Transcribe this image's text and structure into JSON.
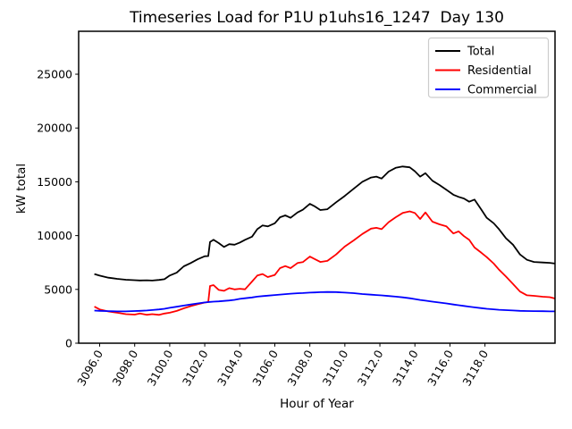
{
  "chart_data": {
    "type": "line",
    "title": "Timeseries Load for P1U p1uhs16_1247  Day 130",
    "xlabel": "Hour of Year",
    "ylabel": "kW total",
    "xlim": [
      3094.8,
      3122.0
    ],
    "ylim": [
      0,
      28990
    ],
    "grid": false,
    "legend_position": "upper right",
    "xticks": [
      3096,
      3098,
      3100,
      3102,
      3104,
      3106,
      3108,
      3110,
      3112,
      3114,
      3116,
      3118
    ],
    "xtick_labels": [
      "3096.0",
      "3098.0",
      "3100.0",
      "3102.0",
      "3104.0",
      "3106.0",
      "3108.0",
      "3110.0",
      "3112.0",
      "3114.0",
      "3116.0",
      "3118.0"
    ],
    "yticks": [
      0,
      5000,
      10000,
      15000,
      20000,
      25000
    ],
    "ytick_labels": [
      "0",
      "5000",
      "10000",
      "15000",
      "20000",
      "25000"
    ],
    "x": [
      3095.7,
      3096.0,
      3096.5,
      3097.0,
      3097.5,
      3098.0,
      3098.3,
      3098.7,
      3099.0,
      3099.4,
      3099.7,
      3100.0,
      3100.4,
      3100.8,
      3101.2,
      3101.6,
      3102.0,
      3102.2,
      3102.3,
      3102.5,
      3102.8,
      3103.1,
      3103.4,
      3103.7,
      3104.0,
      3104.3,
      3104.7,
      3105.0,
      3105.3,
      3105.6,
      3106.0,
      3106.3,
      3106.6,
      3106.9,
      3107.3,
      3107.6,
      3108.0,
      3108.3,
      3108.6,
      3109.0,
      3109.5,
      3110.0,
      3110.5,
      3111.0,
      3111.5,
      3111.8,
      3112.1,
      3112.5,
      3112.9,
      3113.3,
      3113.7,
      3114.0,
      3114.3,
      3114.6,
      3115.0,
      3115.4,
      3115.8,
      3116.2,
      3116.5,
      3116.8,
      3117.1,
      3117.4,
      3117.8,
      3118.1,
      3118.5,
      3118.8,
      3119.2,
      3119.6,
      3120.0,
      3120.4,
      3120.8,
      3121.3,
      3121.7,
      3122.0
    ],
    "series": [
      {
        "name": "Total",
        "color": "#000000",
        "values": [
          6430,
          6280,
          6090,
          5980,
          5900,
          5860,
          5830,
          5850,
          5820,
          5880,
          5950,
          6290,
          6550,
          7140,
          7450,
          7800,
          8080,
          8100,
          9400,
          9610,
          9300,
          8950,
          9200,
          9150,
          9350,
          9610,
          9900,
          10600,
          10950,
          10860,
          11150,
          11700,
          11880,
          11650,
          12150,
          12400,
          12950,
          12700,
          12380,
          12450,
          13100,
          13700,
          14350,
          15000,
          15400,
          15480,
          15300,
          15950,
          16300,
          16420,
          16350,
          15980,
          15480,
          15800,
          15100,
          14700,
          14250,
          13800,
          13600,
          13450,
          13150,
          13350,
          12400,
          11650,
          11150,
          10600,
          9750,
          9150,
          8250,
          7750,
          7550,
          7500,
          7470,
          7400
        ]
      },
      {
        "name": "Residential",
        "color": "#ff0000",
        "values": [
          3400,
          3140,
          2950,
          2830,
          2700,
          2660,
          2760,
          2640,
          2700,
          2630,
          2760,
          2830,
          3000,
          3240,
          3450,
          3620,
          3780,
          3820,
          5320,
          5400,
          4950,
          4870,
          5120,
          5000,
          5060,
          5010,
          5730,
          6290,
          6430,
          6150,
          6350,
          6980,
          7170,
          6980,
          7450,
          7530,
          8050,
          7800,
          7550,
          7650,
          8250,
          9000,
          9550,
          10150,
          10650,
          10720,
          10600,
          11250,
          11700,
          12100,
          12250,
          12100,
          11550,
          12150,
          11300,
          11050,
          10860,
          10200,
          10390,
          9950,
          9600,
          8900,
          8400,
          8000,
          7400,
          6840,
          6200,
          5500,
          4800,
          4450,
          4400,
          4320,
          4280,
          4150
        ]
      },
      {
        "name": "Commercial",
        "color": "#0000ff",
        "values": [
          3030,
          3010,
          2980,
          2960,
          2960,
          2990,
          3010,
          3040,
          3080,
          3140,
          3200,
          3290,
          3390,
          3500,
          3600,
          3700,
          3790,
          3820,
          3840,
          3860,
          3890,
          3930,
          3970,
          4030,
          4120,
          4180,
          4250,
          4330,
          4380,
          4420,
          4480,
          4520,
          4560,
          4600,
          4640,
          4660,
          4700,
          4720,
          4740,
          4760,
          4750,
          4700,
          4650,
          4570,
          4510,
          4480,
          4440,
          4390,
          4330,
          4260,
          4180,
          4100,
          4020,
          3950,
          3860,
          3780,
          3700,
          3600,
          3530,
          3460,
          3400,
          3330,
          3260,
          3200,
          3150,
          3110,
          3070,
          3040,
          3010,
          2990,
          2980,
          2970,
          2960,
          2960
        ]
      }
    ]
  }
}
